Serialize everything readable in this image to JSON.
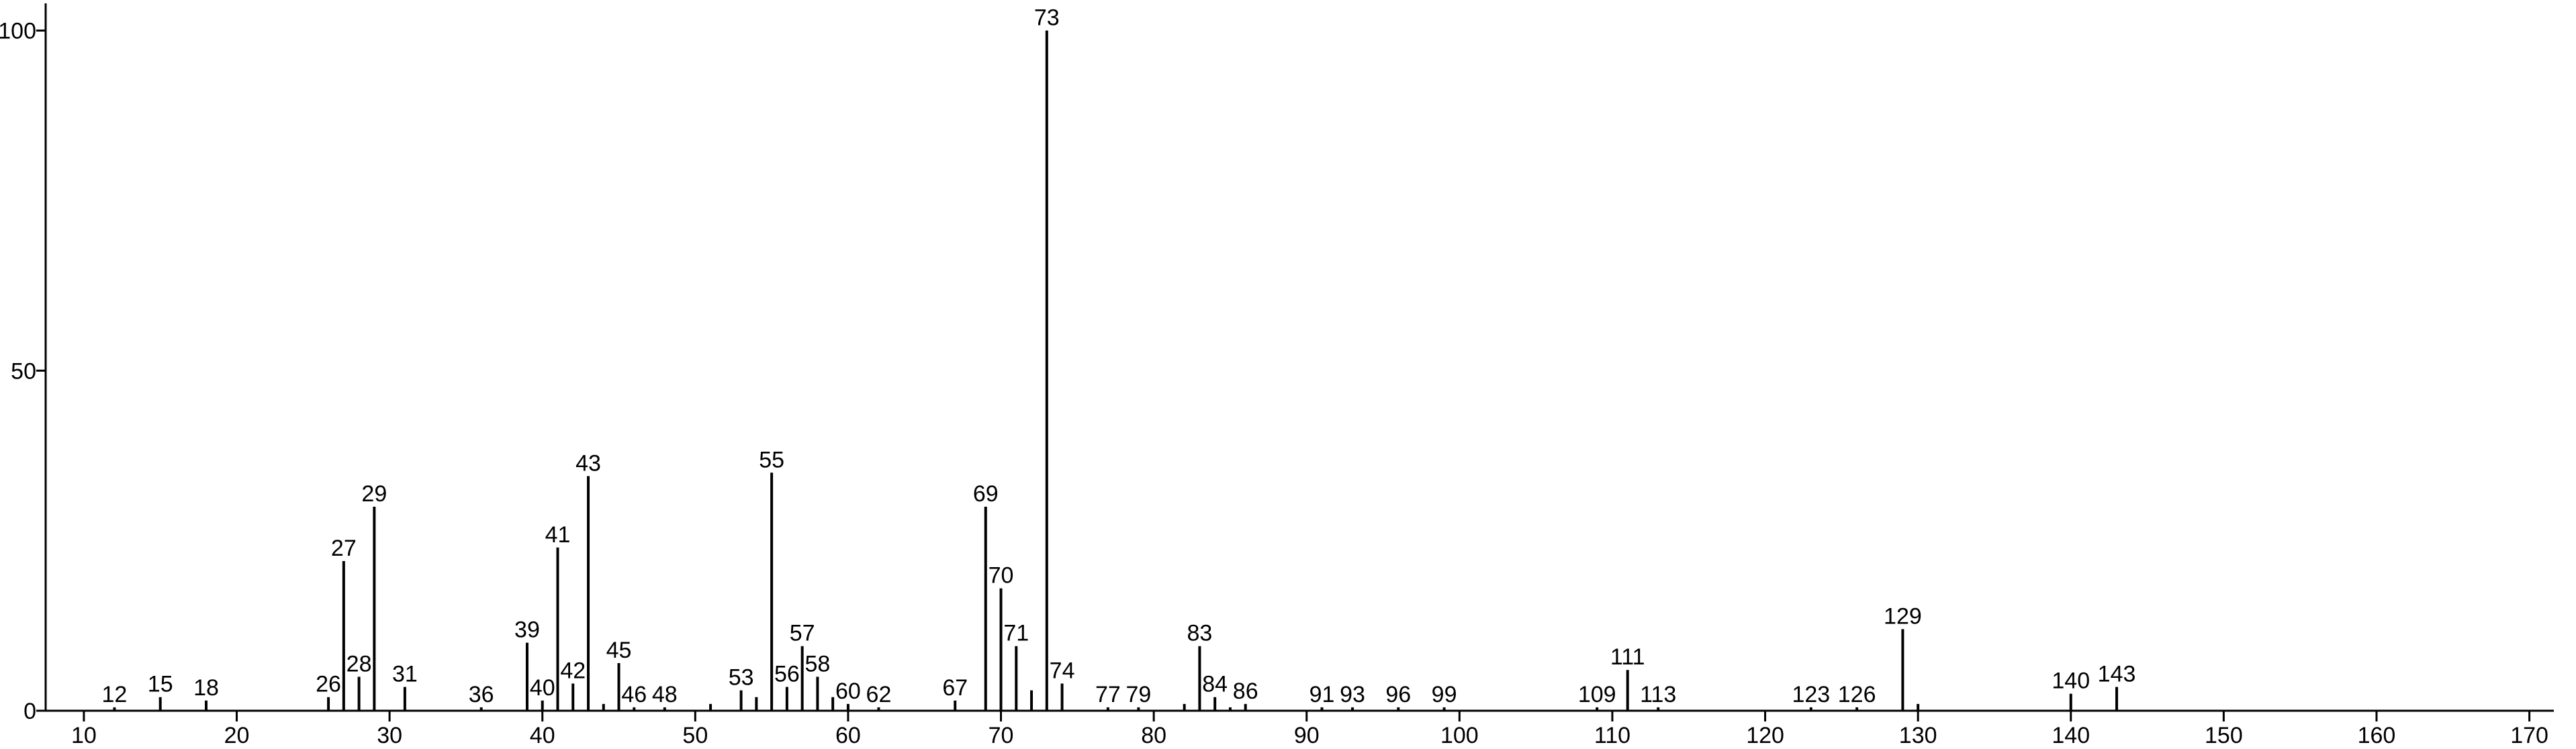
{
  "chart_data": {
    "type": "stem",
    "x": [
      12,
      15,
      18,
      26,
      27,
      28,
      29,
      31,
      36,
      39,
      40,
      41,
      42,
      43,
      45,
      46,
      48,
      53,
      55,
      56,
      57,
      58,
      60,
      62,
      67,
      69,
      70,
      71,
      73,
      74,
      77,
      79,
      83,
      84,
      86,
      91,
      93,
      96,
      99,
      109,
      111,
      113,
      123,
      126,
      129,
      140,
      143
    ],
    "values": [
      0.5,
      2,
      1.5,
      2,
      22,
      5,
      30,
      3.5,
      0.5,
      10,
      1.5,
      24,
      4,
      34.5,
      7,
      0.5,
      0.5,
      3,
      35,
      3.5,
      9.5,
      5,
      1,
      0.5,
      1.5,
      30,
      18,
      9.5,
      100,
      4,
      0.5,
      0.5,
      9.5,
      2,
      1,
      0.5,
      0.5,
      0.5,
      0.5,
      0.5,
      6,
      0.5,
      0.5,
      0.5,
      12,
      2.5,
      3.5
    ],
    "minor_x": [
      44,
      51,
      54,
      59,
      72,
      82,
      85,
      130
    ],
    "minor_values": [
      1,
      1,
      2,
      2,
      3,
      1,
      0.5,
      1
    ],
    "color": "#000000",
    "xlim": [
      7.5,
      171.6
    ],
    "xticks": [
      10,
      20,
      30,
      40,
      50,
      60,
      70,
      80,
      90,
      100,
      110,
      120,
      130,
      140,
      150,
      160,
      170
    ],
    "ylim": [
      0,
      104
    ],
    "yticks": [
      0,
      50,
      100
    ]
  }
}
